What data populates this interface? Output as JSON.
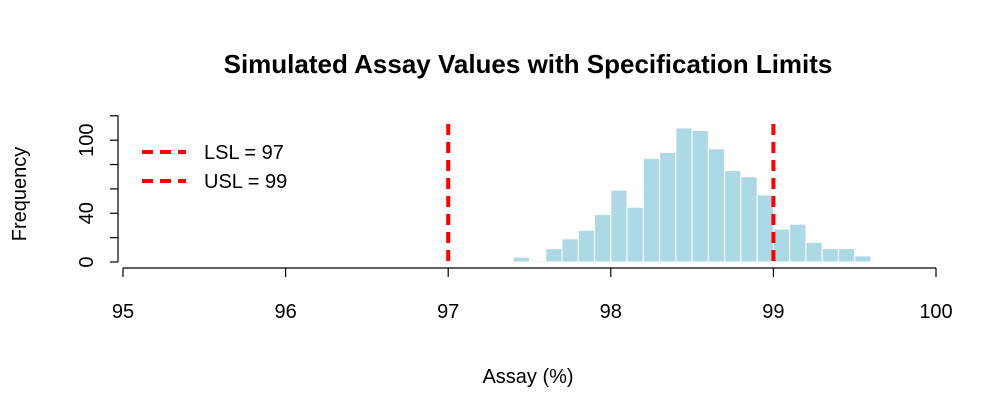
{
  "chart_data": {
    "type": "bar",
    "title": "Simulated Assay Values with Specification Limits",
    "xlabel": "Assay (%)",
    "ylabel": "Frequency",
    "xlim": [
      95,
      100
    ],
    "ylim": [
      0,
      110
    ],
    "x_ticks": [
      "95",
      "96",
      "97",
      "98",
      "99",
      "100"
    ],
    "y_ticks": [
      "0",
      "40",
      "100"
    ],
    "bin_width": 0.1,
    "bins": [
      {
        "start": 97.4,
        "value": 4
      },
      {
        "start": 97.5,
        "value": 1
      },
      {
        "start": 97.6,
        "value": 11
      },
      {
        "start": 97.7,
        "value": 19
      },
      {
        "start": 97.8,
        "value": 26
      },
      {
        "start": 97.9,
        "value": 39
      },
      {
        "start": 98.0,
        "value": 59
      },
      {
        "start": 98.1,
        "value": 45
      },
      {
        "start": 98.2,
        "value": 85
      },
      {
        "start": 98.3,
        "value": 90
      },
      {
        "start": 98.4,
        "value": 110
      },
      {
        "start": 98.5,
        "value": 108
      },
      {
        "start": 98.6,
        "value": 93
      },
      {
        "start": 98.7,
        "value": 75
      },
      {
        "start": 98.8,
        "value": 70
      },
      {
        "start": 98.9,
        "value": 55
      },
      {
        "start": 99.0,
        "value": 27
      },
      {
        "start": 99.1,
        "value": 31
      },
      {
        "start": 99.2,
        "value": 16
      },
      {
        "start": 99.3,
        "value": 11
      },
      {
        "start": 99.4,
        "value": 11
      },
      {
        "start": 99.5,
        "value": 5
      }
    ],
    "reference_lines": [
      {
        "label": "LSL = 97",
        "value": 97
      },
      {
        "label": "USL = 99",
        "value": 99
      }
    ],
    "legend_position": "top-left",
    "colors": {
      "bars": "#add8e6",
      "bar_border": "#ffffff",
      "lines": "#ff0000"
    }
  }
}
